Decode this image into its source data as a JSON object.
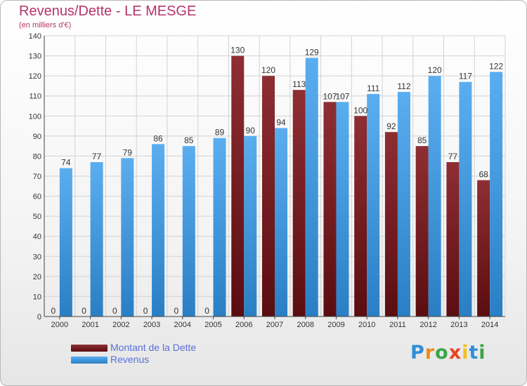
{
  "colors": {
    "title": "#b5336b",
    "dette": "#7a1e24",
    "revenus": "#3a94dc",
    "legend_text": "#5a6fd6"
  },
  "legend": {
    "dette_label": "Montant de la Dette",
    "revenus_label": "Revenus"
  },
  "brand": {
    "name": "Proxiti",
    "letter_colors": [
      "#2e8fd8",
      "#f08a1c",
      "#3aa548",
      "#e8441e",
      "#f2c21b",
      "#2e8fd8",
      "#3aa548"
    ]
  },
  "chart_data": {
    "type": "bar",
    "title": "Revenus/Dette - LE MESGE",
    "subtitle": "(en milliers d'€)",
    "categories": [
      "2000",
      "2001",
      "2002",
      "2003",
      "2004",
      "2005",
      "2006",
      "2007",
      "2008",
      "2009",
      "2010",
      "2011",
      "2012",
      "2013",
      "2014"
    ],
    "series": [
      {
        "name": "Montant de la Dette",
        "values": [
          0,
          0,
          0,
          0,
          0,
          0,
          130,
          120,
          113,
          107,
          100,
          92,
          85,
          77,
          68
        ]
      },
      {
        "name": "Revenus",
        "values": [
          74,
          77,
          79,
          86,
          85,
          89,
          90,
          94,
          129,
          107,
          111,
          112,
          120,
          117,
          122
        ]
      }
    ],
    "ylim": [
      0,
      140
    ],
    "yticks": [
      0,
      10,
      20,
      30,
      40,
      50,
      60,
      70,
      80,
      90,
      100,
      110,
      120,
      130,
      140
    ],
    "grid": true,
    "legend_position": "bottom-left"
  }
}
